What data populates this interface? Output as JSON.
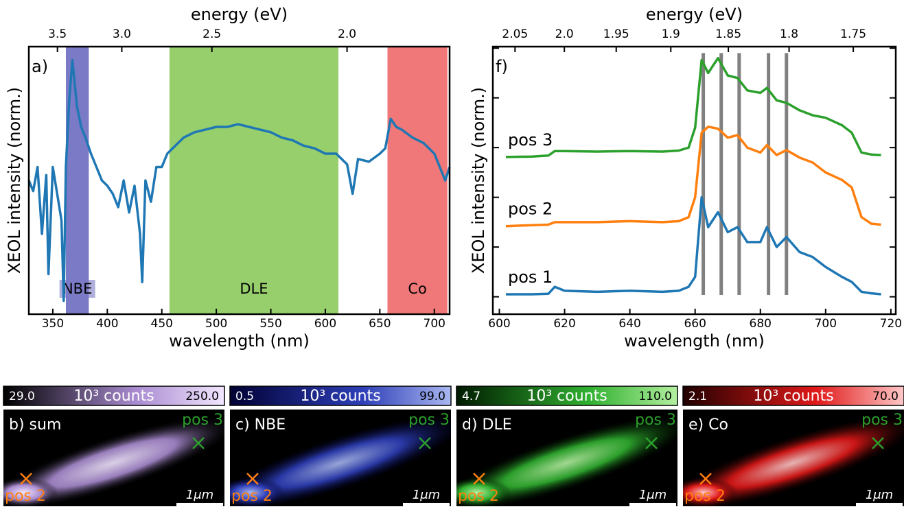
{
  "chart_data": [
    {
      "type": "line",
      "panel": "a)",
      "x_label": "wavelength (nm)",
      "x2_label": "energy (eV)",
      "y_label": "XEOL intensity (norm.)",
      "color": "#1f77b4",
      "x": [
        328,
        332,
        336,
        340,
        344,
        346,
        350,
        354,
        358,
        360,
        362,
        365,
        368,
        372,
        376,
        380,
        385,
        390,
        395,
        400,
        405,
        410,
        415,
        420,
        425,
        430,
        432,
        435,
        440,
        445,
        450,
        455,
        460,
        470,
        480,
        490,
        500,
        510,
        520,
        530,
        540,
        550,
        560,
        570,
        580,
        590,
        600,
        610,
        620,
        625,
        630,
        640,
        650,
        655,
        660,
        665,
        670,
        680,
        690,
        700,
        705,
        710,
        714
      ],
      "values": [
        0.5,
        0.46,
        0.55,
        0.3,
        0.52,
        0.15,
        0.55,
        0.45,
        0.35,
        0.05,
        0.55,
        0.8,
        0.95,
        0.78,
        0.7,
        0.66,
        0.6,
        0.55,
        0.5,
        0.48,
        0.45,
        0.4,
        0.5,
        0.38,
        0.48,
        0.3,
        0.12,
        0.5,
        0.42,
        0.55,
        0.55,
        0.6,
        0.62,
        0.66,
        0.68,
        0.69,
        0.7,
        0.7,
        0.71,
        0.7,
        0.69,
        0.68,
        0.66,
        0.65,
        0.63,
        0.62,
        0.6,
        0.6,
        0.56,
        0.45,
        0.58,
        0.57,
        0.6,
        0.62,
        0.73,
        0.7,
        0.69,
        0.66,
        0.64,
        0.6,
        0.55,
        0.5,
        0.55
      ],
      "xlim": [
        328,
        714
      ],
      "ylim": [
        0,
        1
      ],
      "xticks": [
        350,
        400,
        450,
        500,
        550,
        600,
        650,
        700
      ],
      "x2ticks": [
        3.5,
        {
          "value": 3,
          "label": "3.0"
        },
        2.5,
        {
          "value": 2,
          "label": "2.0"
        }
      ],
      "bands": [
        {
          "label": "NBE",
          "from": 362,
          "to": 383,
          "color": "#7a7ac6"
        },
        {
          "label": "DLE",
          "from": 457,
          "to": 612,
          "color": "#96cf6c"
        },
        {
          "label": "Co",
          "from": 657,
          "to": 712,
          "color": "#f07878"
        }
      ]
    },
    {
      "type": "line",
      "panel": "f)",
      "x_label": "wavelength (nm)",
      "x2_label": "energy (eV)",
      "y_label": "XEOL intensity (norm.)",
      "x": [
        602,
        610,
        615,
        617,
        620,
        630,
        640,
        650,
        655,
        658,
        660,
        662,
        664,
        667,
        670,
        673,
        676,
        680,
        682,
        685,
        688,
        692,
        696,
        700,
        705,
        708,
        711,
        714,
        717
      ],
      "series": [
        {
          "name": "pos 1",
          "color": "#1f77b4",
          "values": [
            0.05,
            0.05,
            0.06,
            0.2,
            0.12,
            0.1,
            0.12,
            0.1,
            0.12,
            0.2,
            0.4,
            2.0,
            1.4,
            1.7,
            1.3,
            1.4,
            1.1,
            1.1,
            1.4,
            1.0,
            1.2,
            0.9,
            0.8,
            0.6,
            0.4,
            0.3,
            0.1,
            0.07,
            0.05
          ]
        },
        {
          "name": "pos 2",
          "color": "#ff7f0e",
          "values": [
            1.42,
            1.44,
            1.45,
            1.5,
            1.5,
            1.5,
            1.52,
            1.5,
            1.52,
            1.6,
            2.0,
            3.3,
            3.42,
            3.38,
            3.2,
            3.25,
            3.0,
            2.9,
            3.05,
            2.85,
            2.95,
            2.8,
            2.7,
            2.5,
            2.35,
            2.2,
            1.6,
            1.47,
            1.45
          ]
        },
        {
          "name": "pos 3",
          "color": "#2ca02c",
          "values": [
            2.81,
            2.82,
            2.84,
            2.93,
            2.93,
            2.92,
            2.93,
            2.92,
            2.94,
            3.0,
            3.4,
            4.76,
            4.5,
            4.8,
            4.45,
            4.4,
            4.15,
            4.1,
            4.2,
            3.95,
            3.9,
            3.75,
            3.65,
            3.6,
            3.45,
            3.3,
            2.9,
            2.86,
            2.85
          ]
        }
      ],
      "markers": [
        662.5,
        668,
        673.5,
        682.5,
        688
      ],
      "xlim": [
        598,
        721.5
      ],
      "ylim": [
        -0.35,
        5.03
      ],
      "yticks": [
        0,
        1,
        2,
        3,
        4,
        5
      ],
      "xticks": [
        600,
        620,
        640,
        660,
        680,
        700,
        720
      ],
      "x2ticks": [
        2.05,
        {
          "value": 2,
          "label": "2.0"
        },
        1.95,
        1.9,
        1.85,
        {
          "value": 1.8,
          "label": "1.8"
        },
        1.75
      ]
    }
  ],
  "maps": [
    {
      "label": "b) sum",
      "cmin": "29.0",
      "unit": "10³ counts",
      "cmax": "250.0",
      "dark": "#000000",
      "light": "#f2e6ff",
      "mid": "#a98bd0"
    },
    {
      "label": "c) NBE",
      "cmin": "0.5",
      "unit": "10³ counts",
      "cmax": "99.0",
      "dark": "#000033",
      "light": "#a9b7f0",
      "mid": "#2e3fb8"
    },
    {
      "label": "d) DLE",
      "cmin": "4.7",
      "unit": "10³ counts",
      "cmax": "110.0",
      "dark": "#001a00",
      "light": "#b4f0a0",
      "mid": "#30b030"
    },
    {
      "label": "e) Co",
      "cmin": "2.1",
      "unit": "10³ counts",
      "cmax": "70.0",
      "dark": "#200000",
      "light": "#ffc8c8",
      "mid": "#e01818"
    }
  ],
  "pos_a": "pos 3",
  "pos_b": "pos 2",
  "scale": "1μm"
}
